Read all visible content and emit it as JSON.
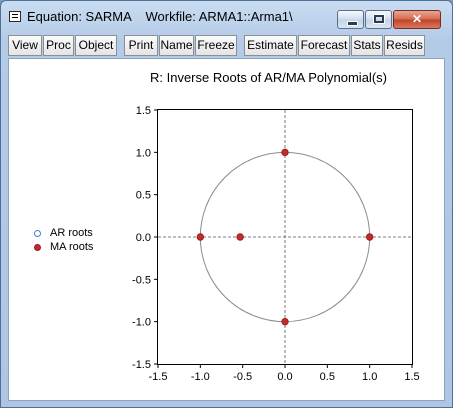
{
  "window": {
    "title": "Equation: SARMA    Workfile: ARMA1::Arma1\\",
    "close_glyph": "✕"
  },
  "toolbar": {
    "buttons": [
      "View",
      "Proc",
      "Object",
      "Print",
      "Name",
      "Freeze",
      "Estimate",
      "Forecast",
      "Stats",
      "Resids"
    ]
  },
  "chart_data": {
    "type": "scatter",
    "title": "R: Inverse Roots of AR/MA Polynomial(s)",
    "xlim": [
      -1.5,
      1.5
    ],
    "ylim": [
      -1.5,
      1.5
    ],
    "x_ticks": [
      "-1.5",
      "-1.0",
      "-0.5",
      "0.0",
      "0.5",
      "1.0",
      "1.5"
    ],
    "y_ticks": [
      "1.5",
      "1.0",
      "0.5",
      "0.0",
      "-0.5",
      "-1.0",
      "-1.5"
    ],
    "unit_circle": true,
    "legend_position": "left",
    "series": [
      {
        "name": "AR roots",
        "color": "#4a7fd0",
        "marker": "open-circle",
        "points": []
      },
      {
        "name": "MA roots",
        "color": "#c8282b",
        "marker": "filled-circle",
        "points": [
          [
            0.0,
            1.0
          ],
          [
            -1.0,
            0.0
          ],
          [
            -0.53,
            0.0
          ],
          [
            1.0,
            0.0
          ],
          [
            0.0,
            -1.0
          ]
        ]
      }
    ]
  }
}
